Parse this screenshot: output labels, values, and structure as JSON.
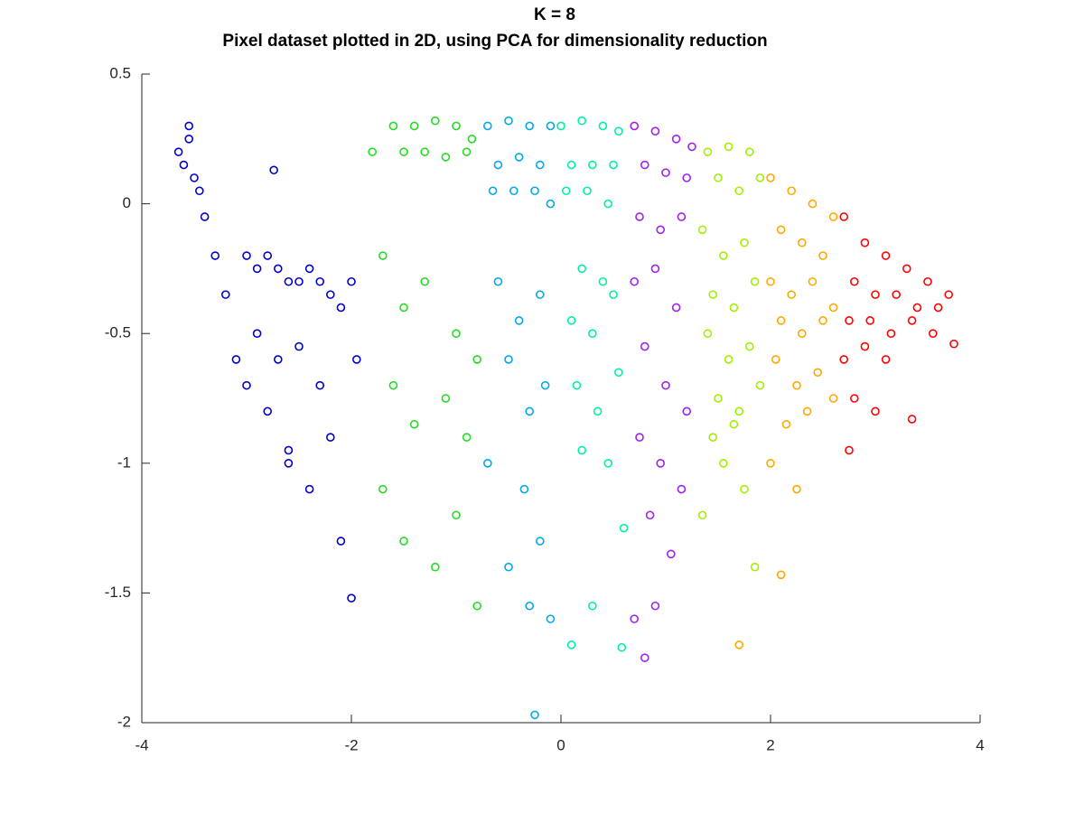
{
  "chart_data": {
    "type": "scatter",
    "title": "K = 8",
    "subtitle": "Pixel dataset plotted in 2D, using PCA for dimensionality reduction",
    "xlim": [
      -4,
      4
    ],
    "xticks": [
      -4,
      -2,
      0,
      2,
      4
    ],
    "ylim": [
      -2,
      0.5
    ],
    "yticks": [
      -2,
      -1.5,
      -1,
      -0.5,
      0,
      0.5
    ],
    "marker": "open-circle",
    "series": [
      {
        "color": "#0000cc",
        "x": [
          -3.65,
          -3.6,
          -3.55,
          -3.5,
          -3.45,
          -3.4,
          -3.3,
          -3.2,
          -3.0,
          -2.9,
          -2.8,
          -2.7,
          -2.6,
          -2.5,
          -2.4,
          -2.3,
          -2.2,
          -2.1,
          -2.0,
          -2.9,
          -2.7,
          -2.5,
          -2.3,
          -3.1,
          -2.8,
          -2.6,
          -2.2,
          -2.4,
          -2.1,
          -2.6,
          -3.0,
          -2.74,
          -3.55,
          -2.0,
          -1.95
        ],
        "values": [
          0.2,
          0.15,
          0.25,
          0.1,
          0.05,
          -0.05,
          -0.2,
          -0.35,
          -0.2,
          -0.25,
          -0.2,
          -0.25,
          -0.3,
          -0.3,
          -0.25,
          -0.3,
          -0.35,
          -0.4,
          -0.3,
          -0.5,
          -0.6,
          -0.55,
          -0.7,
          -0.6,
          -0.8,
          -1.0,
          -0.9,
          -1.1,
          -1.3,
          -0.95,
          -0.7,
          0.13,
          0.3,
          -1.52,
          -0.6
        ]
      },
      {
        "color": "#22dd22",
        "x": [
          -1.6,
          -1.4,
          -1.2,
          -1.0,
          -0.85,
          -1.5,
          -1.3,
          -1.1,
          -0.9,
          -1.8,
          -1.7,
          -1.5,
          -1.3,
          -1.0,
          -0.8,
          -1.6,
          -1.4,
          -1.1,
          -0.9,
          -1.7,
          -1.5,
          -1.2,
          -1.0,
          -0.8
        ],
        "values": [
          0.3,
          0.3,
          0.32,
          0.3,
          0.25,
          0.2,
          0.2,
          0.18,
          0.2,
          0.2,
          -0.2,
          -0.4,
          -0.3,
          -0.5,
          -0.6,
          -0.7,
          -0.85,
          -0.75,
          -0.9,
          -1.1,
          -1.3,
          -1.4,
          -1.2,
          -1.55
        ]
      },
      {
        "color": "#00a8f0",
        "x": [
          -0.7,
          -0.5,
          -0.3,
          -0.1,
          -0.6,
          -0.4,
          -0.2,
          -0.65,
          -0.45,
          -0.25,
          -0.1,
          -0.6,
          -0.4,
          -0.2,
          -0.5,
          -0.3,
          -0.15,
          -0.7,
          -0.35,
          -0.2,
          -0.5,
          -0.3,
          -0.1,
          -0.25
        ],
        "values": [
          0.3,
          0.32,
          0.3,
          0.3,
          0.15,
          0.18,
          0.15,
          0.05,
          0.05,
          0.05,
          0.0,
          -0.3,
          -0.45,
          -0.35,
          -0.6,
          -0.8,
          -0.7,
          -1.0,
          -1.1,
          -1.3,
          -1.4,
          -1.55,
          -1.6,
          -1.97
        ]
      },
      {
        "color": "#00f0a8",
        "x": [
          0.0,
          0.2,
          0.4,
          0.55,
          0.1,
          0.3,
          0.5,
          0.05,
          0.25,
          0.45,
          0.2,
          0.4,
          0.1,
          0.3,
          0.5,
          0.15,
          0.35,
          0.55,
          0.2,
          0.45,
          0.6,
          0.3,
          0.1,
          0.58
        ],
        "values": [
          0.3,
          0.32,
          0.3,
          0.28,
          0.15,
          0.15,
          0.15,
          0.05,
          0.05,
          0.0,
          -0.25,
          -0.3,
          -0.45,
          -0.5,
          -0.35,
          -0.7,
          -0.8,
          -0.65,
          -0.95,
          -1.0,
          -1.25,
          -1.55,
          -1.7,
          -1.71
        ]
      },
      {
        "color": "#a020f0",
        "x": [
          0.7,
          0.9,
          1.1,
          1.25,
          0.8,
          1.0,
          1.2,
          0.75,
          0.95,
          1.15,
          0.7,
          0.9,
          1.1,
          0.8,
          1.0,
          1.2,
          0.75,
          0.95,
          1.15,
          0.85,
          1.05,
          0.7,
          0.9,
          0.8
        ],
        "values": [
          0.3,
          0.28,
          0.25,
          0.22,
          0.15,
          0.12,
          0.1,
          -0.05,
          -0.1,
          -0.05,
          -0.3,
          -0.25,
          -0.4,
          -0.55,
          -0.7,
          -0.8,
          -0.9,
          -1.0,
          -1.1,
          -1.2,
          -1.35,
          -1.6,
          -1.55,
          -1.75
        ]
      },
      {
        "color": "#a0f000",
        "x": [
          1.4,
          1.6,
          1.8,
          1.5,
          1.7,
          1.9,
          1.35,
          1.55,
          1.75,
          1.45,
          1.65,
          1.85,
          1.4,
          1.6,
          1.8,
          1.5,
          1.7,
          1.9,
          1.45,
          1.65,
          1.55,
          1.35,
          1.75,
          1.85
        ],
        "values": [
          0.2,
          0.22,
          0.2,
          0.1,
          0.05,
          0.1,
          -0.1,
          -0.2,
          -0.15,
          -0.35,
          -0.4,
          -0.3,
          -0.5,
          -0.6,
          -0.55,
          -0.75,
          -0.8,
          -0.7,
          -0.9,
          -0.85,
          -1.0,
          -1.2,
          -1.1,
          -1.4
        ]
      },
      {
        "color": "#ffa800",
        "x": [
          2.0,
          2.2,
          2.4,
          2.6,
          2.1,
          2.3,
          2.5,
          2.0,
          2.2,
          2.4,
          2.6,
          2.1,
          2.3,
          2.5,
          2.05,
          2.25,
          2.45,
          2.15,
          2.35,
          2.0,
          2.25,
          2.1,
          1.7,
          2.6
        ],
        "values": [
          0.1,
          0.05,
          0.0,
          -0.05,
          -0.1,
          -0.15,
          -0.2,
          -0.3,
          -0.35,
          -0.3,
          -0.4,
          -0.45,
          -0.5,
          -0.45,
          -0.6,
          -0.7,
          -0.65,
          -0.85,
          -0.8,
          -1.0,
          -1.1,
          -1.43,
          -1.7,
          -0.75
        ]
      },
      {
        "color": "#ff0000",
        "x": [
          2.7,
          2.9,
          3.1,
          3.3,
          3.5,
          3.7,
          2.8,
          3.0,
          3.2,
          3.4,
          3.6,
          2.75,
          2.95,
          3.15,
          3.35,
          3.55,
          2.7,
          2.9,
          3.1,
          2.8,
          3.0,
          2.75,
          3.35,
          3.75
        ],
        "values": [
          -0.05,
          -0.15,
          -0.2,
          -0.25,
          -0.3,
          -0.35,
          -0.3,
          -0.35,
          -0.35,
          -0.4,
          -0.4,
          -0.45,
          -0.45,
          -0.5,
          -0.45,
          -0.5,
          -0.6,
          -0.55,
          -0.6,
          -0.75,
          -0.8,
          -0.95,
          -0.83,
          -0.54
        ]
      }
    ]
  }
}
